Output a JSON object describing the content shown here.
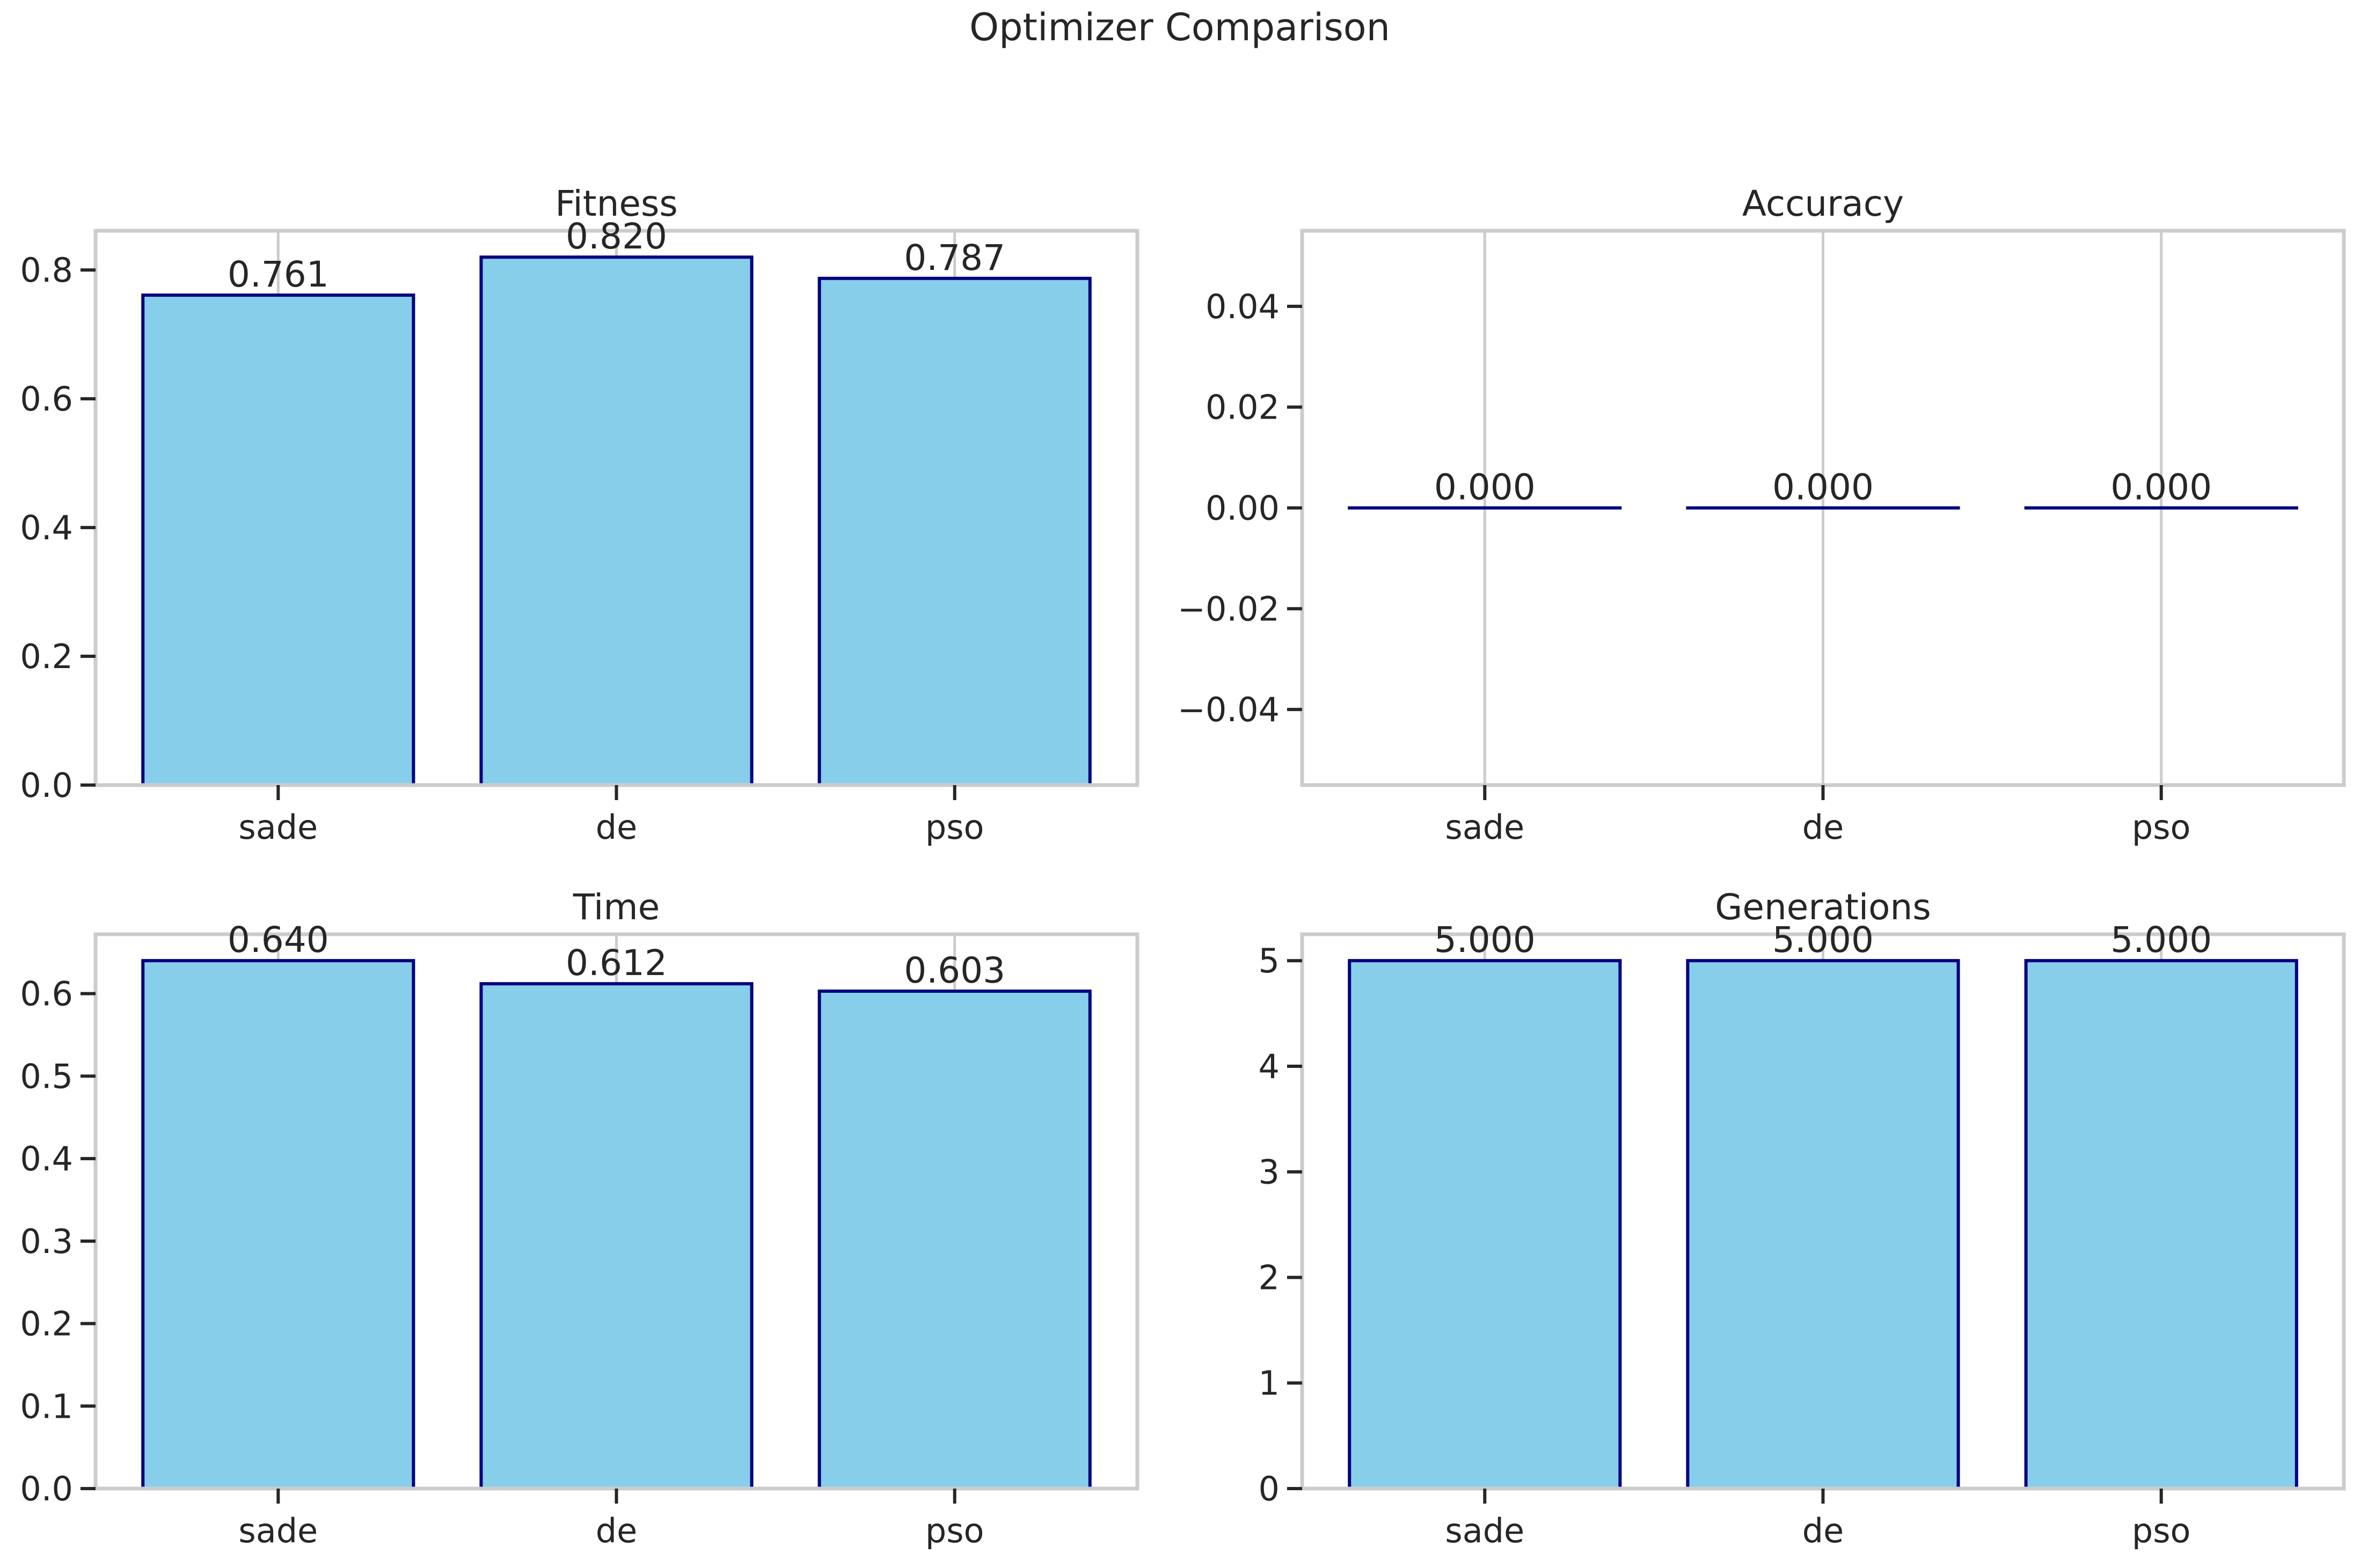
{
  "figure": {
    "suptitle": "Optimizer Comparison"
  },
  "style": {
    "bar_fill": "#87CEEB",
    "bar_edge": "#000080",
    "grid_color": "#cccccc",
    "spine_color": "#cccccc",
    "text_color": "#262626",
    "background": "#ffffff"
  },
  "chart_data": [
    {
      "type": "bar",
      "title": "Fitness",
      "categories": [
        "sade",
        "de",
        "pso"
      ],
      "values": [
        0.761,
        0.82,
        0.787
      ],
      "value_labels": [
        "0.761",
        "0.820",
        "0.787"
      ],
      "ylim": [
        0.0,
        0.861
      ],
      "yticks": [
        0.0,
        0.2,
        0.4,
        0.6,
        0.8
      ],
      "ytick_labels": [
        "0.0",
        "0.2",
        "0.4",
        "0.6",
        "0.8"
      ],
      "xlabel": "",
      "ylabel": "",
      "grid": "x-only"
    },
    {
      "type": "bar",
      "title": "Accuracy",
      "categories": [
        "sade",
        "de",
        "pso"
      ],
      "values": [
        0.0,
        0.0,
        0.0
      ],
      "value_labels": [
        "0.000",
        "0.000",
        "0.000"
      ],
      "ylim": [
        -0.055,
        0.055
      ],
      "yticks": [
        -0.04,
        -0.02,
        0.0,
        0.02,
        0.04
      ],
      "ytick_labels": [
        "−0.04",
        "−0.02",
        "0.00",
        "0.02",
        "0.04"
      ],
      "xlabel": "",
      "ylabel": "",
      "grid": "x-only"
    },
    {
      "type": "bar",
      "title": "Time",
      "categories": [
        "sade",
        "de",
        "pso"
      ],
      "values": [
        0.64,
        0.612,
        0.603
      ],
      "value_labels": [
        "0.640",
        "0.612",
        "0.603"
      ],
      "ylim": [
        0.0,
        0.672
      ],
      "yticks": [
        0.0,
        0.1,
        0.2,
        0.3,
        0.4,
        0.5,
        0.6
      ],
      "ytick_labels": [
        "0.0",
        "0.1",
        "0.2",
        "0.3",
        "0.4",
        "0.5",
        "0.6"
      ],
      "xlabel": "",
      "ylabel": "",
      "grid": "x-only"
    },
    {
      "type": "bar",
      "title": "Generations",
      "categories": [
        "sade",
        "de",
        "pso"
      ],
      "values": [
        5.0,
        5.0,
        5.0
      ],
      "value_labels": [
        "5.000",
        "5.000",
        "5.000"
      ],
      "ylim": [
        0.0,
        5.25
      ],
      "yticks": [
        0,
        1,
        2,
        3,
        4,
        5
      ],
      "ytick_labels": [
        "0",
        "1",
        "2",
        "3",
        "4",
        "5"
      ],
      "xlabel": "",
      "ylabel": "",
      "grid": "x-only"
    }
  ]
}
